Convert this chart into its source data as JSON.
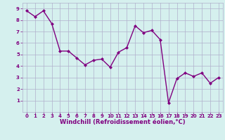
{
  "x": [
    0,
    1,
    2,
    3,
    4,
    5,
    6,
    7,
    8,
    9,
    10,
    11,
    12,
    13,
    14,
    15,
    16,
    17,
    18,
    19,
    20,
    21,
    22,
    23
  ],
  "y": [
    8.8,
    8.3,
    8.8,
    7.7,
    5.3,
    5.3,
    4.7,
    4.1,
    4.5,
    4.6,
    3.9,
    5.2,
    5.6,
    7.5,
    6.9,
    7.1,
    6.3,
    0.8,
    2.9,
    3.4,
    3.1,
    3.4,
    2.5,
    3.0
  ],
  "line_color": "#800080",
  "marker": "D",
  "marker_size": 2,
  "bg_color": "#d5f0ee",
  "grid_color": "#b0b0cc",
  "xlabel": "Windchill (Refroidissement éolien,°C)",
  "xlabel_color": "#800080",
  "ylim": [
    0,
    9.5
  ],
  "xlim": [
    -0.5,
    23.5
  ],
  "yticks": [
    1,
    2,
    3,
    4,
    5,
    6,
    7,
    8,
    9
  ],
  "xticks": [
    0,
    1,
    2,
    3,
    4,
    5,
    6,
    7,
    8,
    9,
    10,
    11,
    12,
    13,
    14,
    15,
    16,
    17,
    18,
    19,
    20,
    21,
    22,
    23
  ],
  "tick_fontsize": 5.0,
  "xlabel_fontsize": 6.0,
  "ylabel_fontsize": 6.0,
  "linewidth": 1.0
}
